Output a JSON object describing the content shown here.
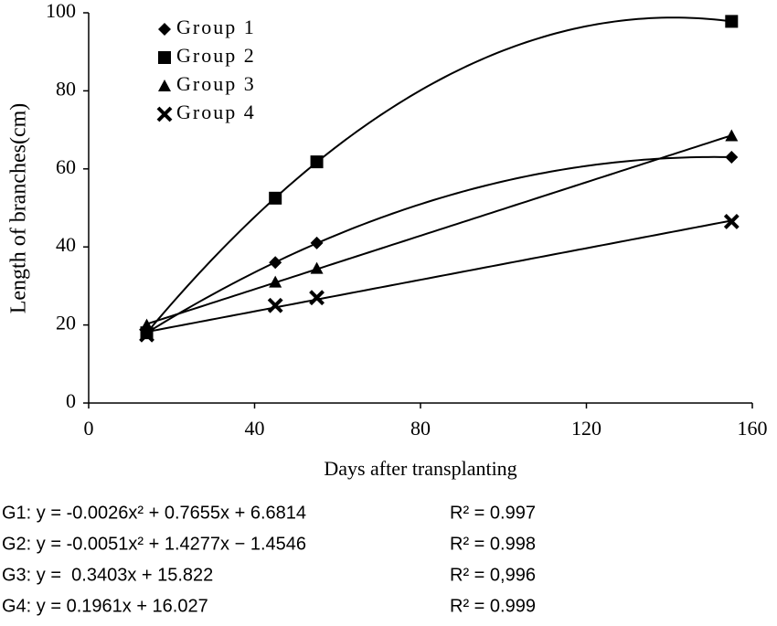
{
  "chart_data": {
    "type": "scatter",
    "x_label": "Days after transplanting",
    "y_label": "Length of branches(cm)",
    "xlim": [
      0,
      160
    ],
    "xticks": [
      0,
      40,
      80,
      120,
      160
    ],
    "ylim": [
      0,
      100
    ],
    "yticks": [
      0,
      20,
      40,
      60,
      80,
      100
    ],
    "series": [
      {
        "name": "Group 1",
        "color": "#000000",
        "marker": "diamond",
        "trendline": "poly2",
        "x": [
          14,
          45,
          55,
          155
        ],
        "values": [
          18,
          36,
          41,
          63
        ]
      },
      {
        "name": "Group 2",
        "color": "#000000",
        "marker": "square",
        "trendline": "poly2",
        "x": [
          14,
          45,
          55,
          155
        ],
        "values": [
          18,
          52.5,
          61.8,
          97.8
        ]
      },
      {
        "name": "Group 3",
        "color": "#000000",
        "marker": "triangle",
        "trendline": "linear",
        "x": [
          14,
          45,
          55,
          155
        ],
        "values": [
          20,
          31,
          34.5,
          68.5
        ]
      },
      {
        "name": "Group 4",
        "color": "#000000",
        "marker": "cross",
        "trendline": "linear",
        "x": [
          14,
          45,
          55,
          155
        ],
        "values": [
          17.5,
          25,
          27,
          46.5
        ]
      }
    ],
    "equations": [
      {
        "equation": "G1: y = -0.0026x² + 0.7655x + 6.6814",
        "r2": "R² = 0.997"
      },
      {
        "equation": "G2: y = -0.0051x² + 1.4277x − 1.4546",
        "r2": "R² = 0.998"
      },
      {
        "equation": "G3: y =  0.3403x + 15.822",
        "r2": "R² = 0,996"
      },
      {
        "equation": "G4: y = 0.1961x + 16.027",
        "r2": "R² = 0.999"
      }
    ]
  }
}
